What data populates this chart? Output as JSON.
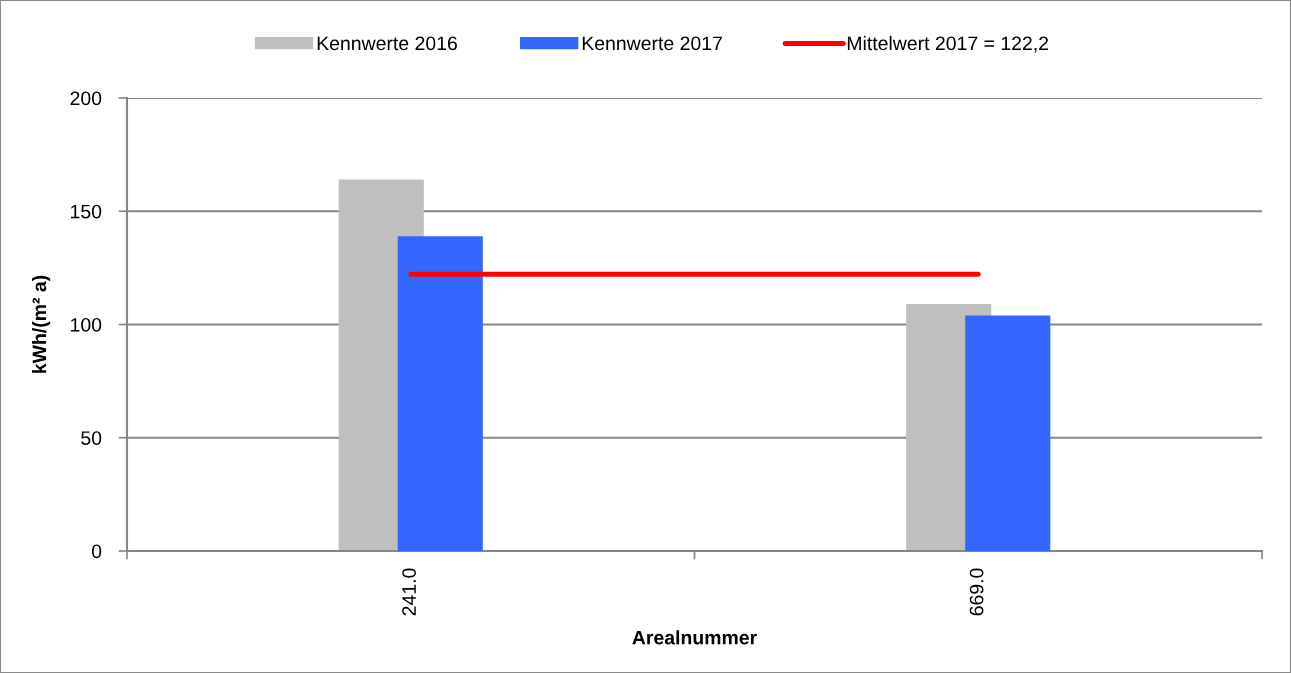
{
  "chart_data": {
    "type": "bar",
    "xlabel": "Arealnummer",
    "ylabel": "kWh/(m² a)",
    "categories": [
      "241.0",
      "669.0"
    ],
    "series": [
      {
        "name": "Kennwerte 2016",
        "color": "#bfbfbf",
        "values": [
          164,
          109
        ]
      },
      {
        "name": "Kennwerte 2017",
        "color": "#3366ff",
        "values": [
          139,
          104
        ]
      },
      {
        "name": "Mittelwert 2017 = 122,2",
        "type": "line",
        "color": "#ff0000",
        "values": [
          122.2,
          122.2
        ],
        "line_style": "solid"
      }
    ],
    "ylim": [
      0,
      200
    ],
    "yticks": [
      0,
      50,
      100,
      150,
      200
    ],
    "grid": "y",
    "legend": "top"
  }
}
